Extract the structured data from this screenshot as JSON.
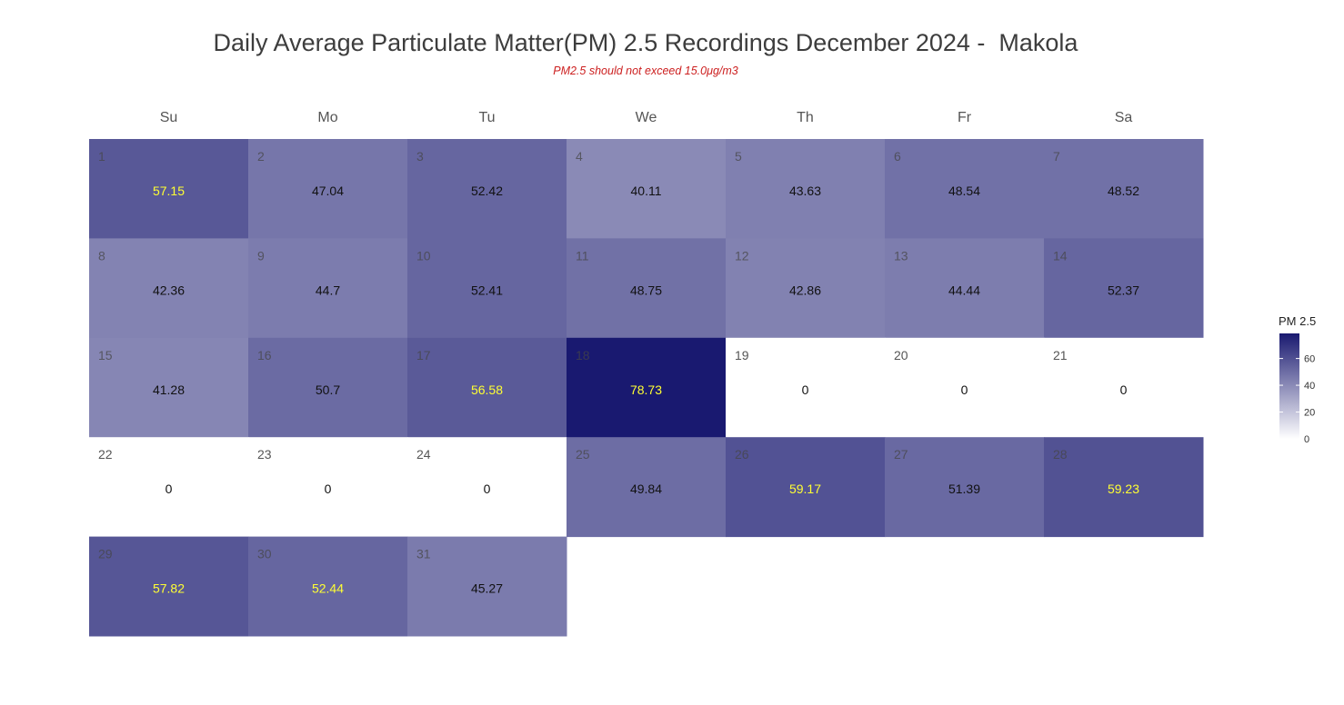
{
  "title": "Daily Average Particulate Matter(PM) 2.5 Recordings December 2024 -  Makola",
  "subtitle": "PM2.5 should not exceed 15.0μg/m3",
  "chart_data": {
    "type": "heatmap",
    "month": "December 2024",
    "weekdays": [
      "Su",
      "Mo",
      "Tu",
      "We",
      "Th",
      "Fr",
      "Sa"
    ],
    "first_weekday_index": 0,
    "days": [
      1,
      2,
      3,
      4,
      5,
      6,
      7,
      8,
      9,
      10,
      11,
      12,
      13,
      14,
      15,
      16,
      17,
      18,
      19,
      20,
      21,
      22,
      23,
      24,
      25,
      26,
      27,
      28,
      29,
      30,
      31
    ],
    "values": [
      57.15,
      47.04,
      52.42,
      40.11,
      43.63,
      48.54,
      48.52,
      42.36,
      44.7,
      52.41,
      48.75,
      42.86,
      44.44,
      52.37,
      41.28,
      50.7,
      56.58,
      78.73,
      0,
      0,
      0,
      0,
      0,
      0,
      49.84,
      59.17,
      51.39,
      59.23,
      57.82,
      52.44,
      45.27
    ],
    "value_label_highlight_threshold": 52.42,
    "legend": {
      "title": "PM 2.5",
      "ticks": [
        0,
        20,
        40,
        60
      ],
      "range": [
        0,
        78.73
      ],
      "color_low": "#ffffff",
      "color_high": "#191970"
    },
    "colors": {
      "label_default": "#111111",
      "label_highlight": "#ffff33",
      "day_number": "#555555",
      "weekday_header": "#555555"
    }
  }
}
